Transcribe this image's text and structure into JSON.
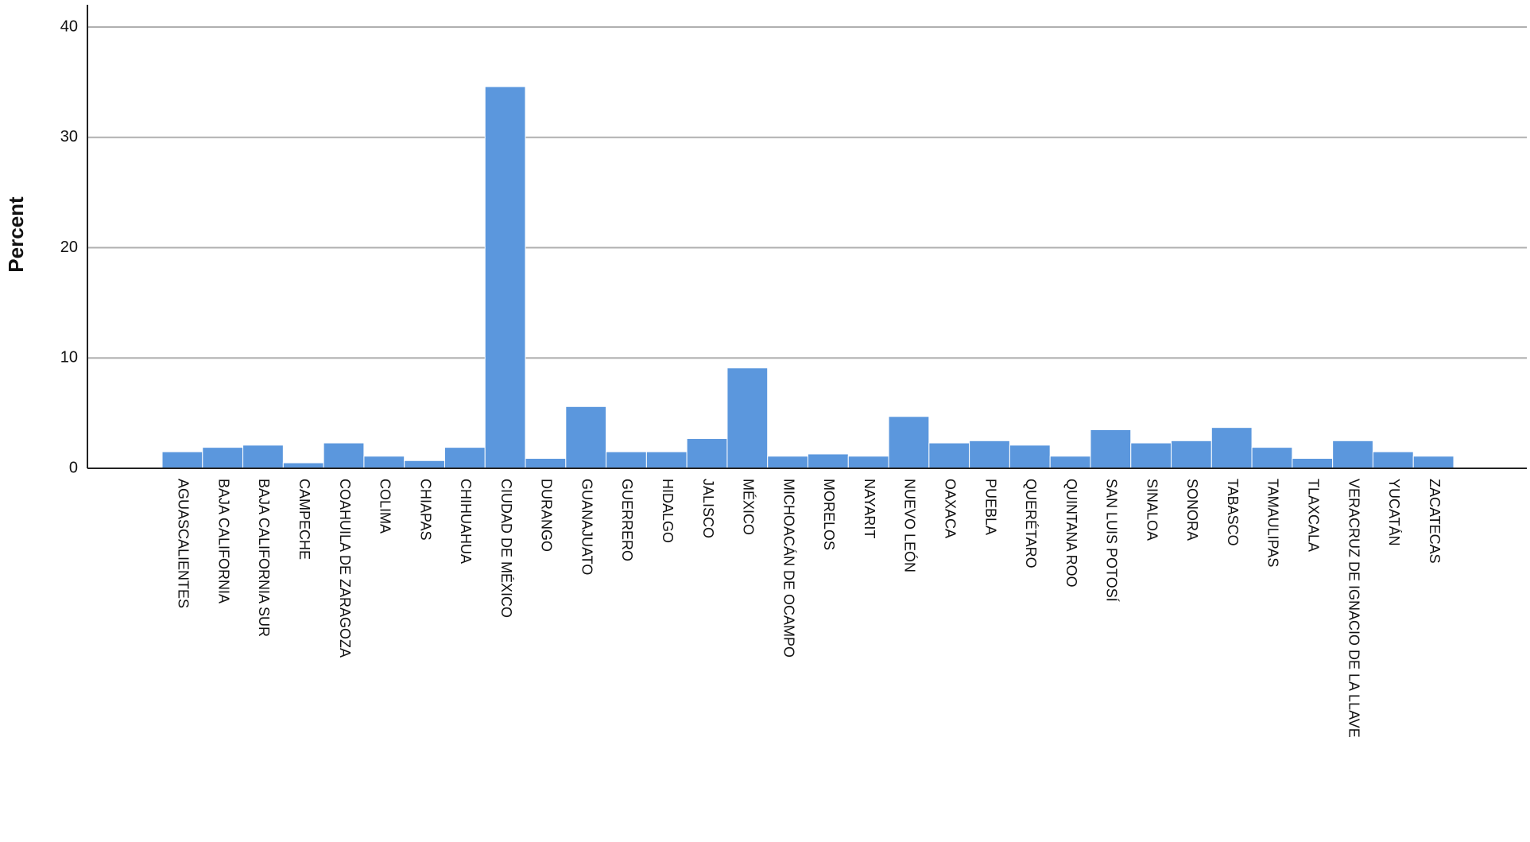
{
  "chart_data": {
    "type": "bar",
    "y_label": "Percent",
    "categories": [
      "AGUASCALIENTES",
      "BAJA CALIFORNIA",
      "BAJA CALIFORNIA SUR",
      "CAMPECHE",
      "COAHUILA DE ZARAGOZA",
      "COLIMA",
      "CHIAPAS",
      "CHIHUAHUA",
      "CIUDAD DE MÉXICO",
      "DURANGO",
      "GUANAJUATO",
      "GUERRERO",
      "HIDALGO",
      "JALISCO",
      "MÉXICO",
      "MICHOACÁN DE OCAMPO",
      "MORELOS",
      "NAYARIT",
      "NUEVO LEÓN",
      "OAXACA",
      "PUEBLA",
      "QUERÉTARO",
      "QUINTANA ROO",
      "SAN LUIS POTOSÍ",
      "SINALOA",
      "SONORA",
      "TABASCO",
      "TAMAULIPAS",
      "TLAXCALA",
      "VERACRUZ DE IGNACIO DE LA LLAVE",
      "YUCATÁN",
      "ZACATECAS"
    ],
    "values": [
      1.5,
      1.9,
      2.1,
      0.5,
      2.3,
      1.1,
      0.7,
      1.9,
      34.6,
      0.9,
      5.6,
      1.5,
      1.5,
      2.7,
      9.1,
      1.1,
      1.3,
      1.1,
      4.7,
      2.3,
      2.5,
      2.1,
      1.1,
      3.5,
      2.3,
      2.5,
      3.7,
      1.9,
      0.9,
      2.5,
      1.5,
      1.1
    ],
    "color": "#5b97dd",
    "ylim": [
      0,
      40
    ],
    "yticks": [
      0,
      10,
      20,
      30,
      40
    ],
    "grid": true
  }
}
